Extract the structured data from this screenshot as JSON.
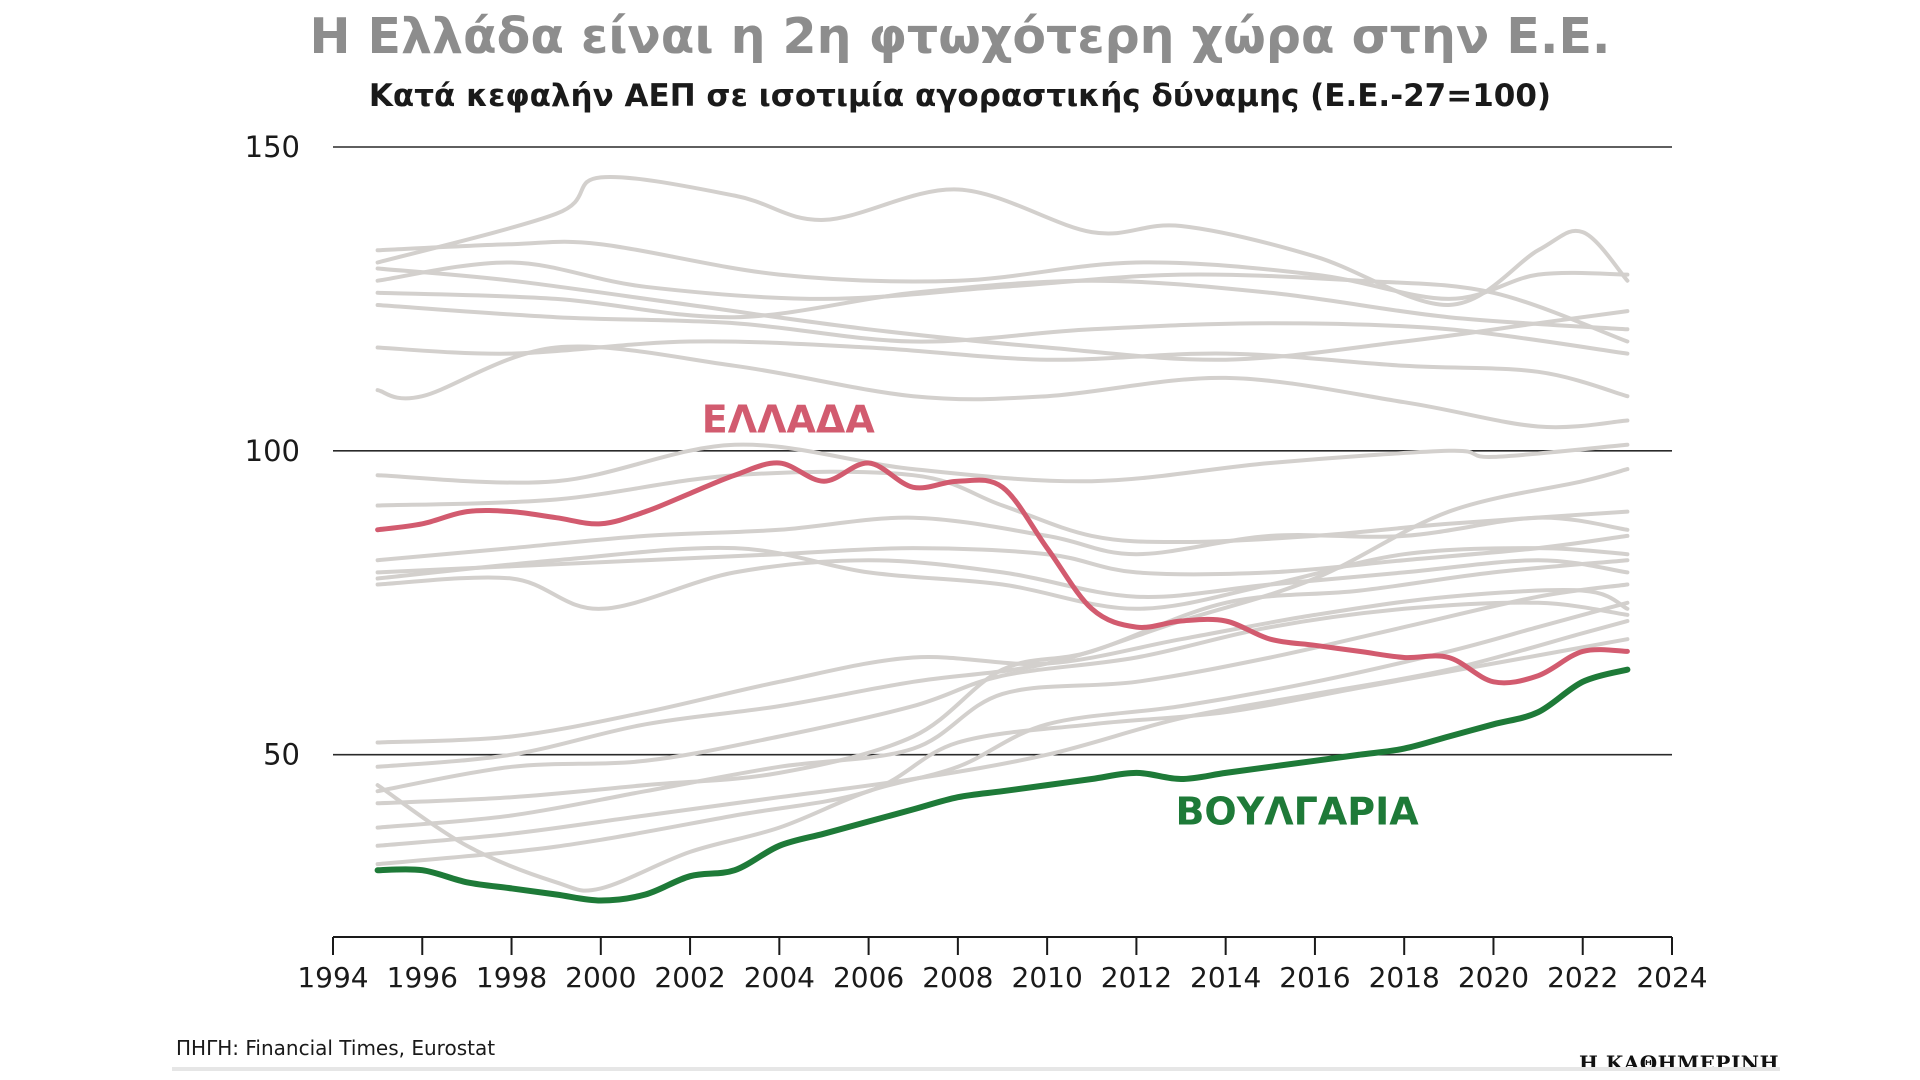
{
  "title": "Η Ελλάδα είναι η 2η φτωχότερη χώρα στην Ε.Ε.",
  "subtitle": "Κατά κεφαλήν ΑΕΠ σε ισοτιμία αγοραστικής δύναμης (Ε.Ε.-27=100)",
  "source": "ΠΗΓΗ: Financial Times, Eurostat",
  "brand": "Η ΚΑΘΗΜΕΡΙΝΗ",
  "colors": {
    "greece": "#d25b6f",
    "bulgaria": "#1e7a38",
    "others": "#d3d0cd",
    "grid": "#2a2a2a",
    "axis_text": "#1a1a1a"
  },
  "chart_data": {
    "type": "line",
    "title": "Η Ελλάδα είναι η 2η φτωχότερη χώρα στην Ε.Ε.",
    "subtitle": "Κατά κεφαλήν ΑΕΠ σε ισοτιμία αγοραστικής δύναμης (Ε.Ε.-27=100)",
    "xlabel": "",
    "ylabel": "",
    "xlim": [
      1994,
      2024
    ],
    "ylim": [
      20,
      150
    ],
    "x_ticks": [
      1994,
      1996,
      1998,
      2000,
      2002,
      2004,
      2006,
      2008,
      2010,
      2012,
      2014,
      2016,
      2018,
      2020,
      2022,
      2024
    ],
    "y_ticks": [
      50,
      100,
      150
    ],
    "grid": "horizontal",
    "highlighted_series": [
      {
        "name": "ΕΛΛΑΔΑ",
        "label": "ΕΛΛΑΔΑ",
        "color": "#d25b6f",
        "x": [
          1995,
          1996,
          1997,
          1998,
          1999,
          2000,
          2001,
          2002,
          2003,
          2004,
          2005,
          2006,
          2007,
          2008,
          2009,
          2010,
          2011,
          2012,
          2013,
          2014,
          2015,
          2016,
          2017,
          2018,
          2019,
          2020,
          2021,
          2022,
          2023
        ],
        "values": [
          87,
          88,
          90,
          90,
          89,
          88,
          90,
          93,
          96,
          98,
          95,
          98,
          94,
          95,
          94,
          84,
          74,
          71,
          72,
          72,
          69,
          68,
          67,
          66,
          66,
          62,
          63,
          67,
          67
        ]
      },
      {
        "name": "ΒΟΥΛΓΑΡΙΑ",
        "label": "ΒΟΥΛΓΑΡΙΑ",
        "color": "#1e7a38",
        "x": [
          1995,
          1996,
          1997,
          1998,
          1999,
          2000,
          2001,
          2002,
          2003,
          2004,
          2005,
          2006,
          2007,
          2008,
          2009,
          2010,
          2011,
          2012,
          2013,
          2014,
          2015,
          2016,
          2017,
          2018,
          2019,
          2020,
          2021,
          2022,
          2023
        ],
        "values": [
          31,
          31,
          29,
          28,
          27,
          26,
          27,
          30,
          31,
          35,
          37,
          39,
          41,
          43,
          44,
          45,
          46,
          47,
          46,
          47,
          48,
          49,
          50,
          51,
          53,
          55,
          57,
          62,
          64
        ]
      }
    ],
    "series": [
      {
        "name": "other-01",
        "x": [
          1995,
          1999,
          2000,
          2003,
          2005,
          2008,
          2011,
          2013,
          2016,
          2019,
          2021,
          2022,
          2023
        ],
        "values": [
          131,
          139,
          145,
          142,
          138,
          143,
          136,
          137,
          132,
          124,
          133,
          136,
          128
        ]
      },
      {
        "name": "other-02",
        "x": [
          1995,
          1998,
          2000,
          2004,
          2008,
          2012,
          2016,
          2019,
          2021,
          2023
        ],
        "values": [
          133,
          134,
          134,
          129,
          128,
          131,
          129,
          125,
          129,
          129
        ]
      },
      {
        "name": "other-03",
        "x": [
          1995,
          1998,
          2001,
          2005,
          2009,
          2013,
          2017,
          2020,
          2023
        ],
        "values": [
          128,
          131,
          127,
          125,
          127,
          129,
          128,
          126,
          118
        ]
      },
      {
        "name": "other-04",
        "x": [
          1995,
          1999,
          2003,
          2007,
          2011,
          2015,
          2019,
          2023
        ],
        "values": [
          126,
          125,
          122,
          126,
          128,
          126,
          122,
          120
        ]
      },
      {
        "name": "other-05",
        "x": [
          1995,
          1999,
          2003,
          2007,
          2011,
          2015,
          2019,
          2023
        ],
        "values": [
          124,
          122,
          121,
          118,
          120,
          121,
          120,
          116
        ]
      },
      {
        "name": "other-06",
        "x": [
          1995,
          1998,
          2002,
          2006,
          2010,
          2014,
          2018,
          2021,
          2023
        ],
        "values": [
          130,
          128,
          124,
          120,
          117,
          115,
          118,
          121,
          123
        ]
      },
      {
        "name": "other-07",
        "x": [
          1995,
          1998,
          2002,
          2006,
          2010,
          2014,
          2018,
          2021,
          2023
        ],
        "values": [
          117,
          116,
          118,
          117,
          115,
          116,
          114,
          113,
          109
        ]
      },
      {
        "name": "other-08",
        "x": [
          1995,
          1996,
          1999,
          2003,
          2007,
          2010,
          2014,
          2018,
          2021,
          2023
        ],
        "values": [
          110,
          109,
          117,
          114,
          109,
          109,
          112,
          108,
          104,
          105
        ]
      },
      {
        "name": "other-09",
        "x": [
          1995,
          1999,
          2003,
          2007,
          2009,
          2011,
          2013,
          2016,
          2019,
          2023
        ],
        "values": [
          91,
          92,
          96,
          96,
          91,
          86,
          85,
          86,
          88,
          90
        ]
      },
      {
        "name": "other-10",
        "x": [
          1995,
          1998,
          2001,
          2004,
          2007,
          2010,
          2012,
          2015,
          2018,
          2021,
          2023
        ],
        "values": [
          82,
          84,
          86,
          87,
          89,
          86,
          83,
          86,
          86,
          89,
          87
        ]
      },
      {
        "name": "other-11",
        "x": [
          1995,
          1998,
          2001,
          2004,
          2007,
          2010,
          2012,
          2015,
          2018,
          2021,
          2023
        ],
        "values": [
          80,
          81,
          82,
          83,
          84,
          83,
          80,
          80,
          82,
          84,
          86
        ]
      },
      {
        "name": "other-12",
        "x": [
          1995,
          1998,
          2000,
          2003,
          2006,
          2009,
          2012,
          2015,
          2018,
          2021,
          2023
        ],
        "values": [
          78,
          79,
          74,
          80,
          82,
          80,
          76,
          78,
          80,
          82,
          80
        ]
      },
      {
        "name": "other-13",
        "x": [
          1995,
          1999,
          2003,
          2007,
          2011,
          2015,
          2019,
          2020,
          2023
        ],
        "values": [
          96,
          95,
          101,
          97,
          95,
          98,
          100,
          99,
          101
        ]
      },
      {
        "name": "other-14",
        "x": [
          1995,
          1999,
          2003,
          2006,
          2009,
          2012,
          2015,
          2018,
          2021,
          2023
        ],
        "values": [
          79,
          82,
          84,
          80,
          78,
          74,
          78,
          83,
          84,
          83
        ]
      },
      {
        "name": "other-15",
        "x": [
          1995,
          1998,
          2001,
          2004,
          2007,
          2010,
          2013,
          2016,
          2019,
          2022,
          2023
        ],
        "values": [
          52,
          53,
          57,
          62,
          66,
          65,
          69,
          73,
          76,
          77,
          74
        ]
      },
      {
        "name": "other-16",
        "x": [
          1995,
          1998,
          2001,
          2004,
          2007,
          2010,
          2013,
          2016,
          2019,
          2022,
          2023
        ],
        "values": [
          48,
          50,
          55,
          58,
          62,
          65,
          72,
          79,
          90,
          95,
          97
        ]
      },
      {
        "name": "other-17",
        "x": [
          1995,
          1998,
          2001,
          2004,
          2007,
          2009,
          2012,
          2015,
          2018,
          2021,
          2023
        ],
        "values": [
          44,
          48,
          49,
          53,
          58,
          63,
          66,
          71,
          74,
          75,
          73
        ]
      },
      {
        "name": "other-18",
        "x": [
          1995,
          1998,
          2001,
          2004,
          2007,
          2009,
          2011,
          2014,
          2017,
          2020,
          2023
        ],
        "values": [
          42,
          43,
          45,
          47,
          53,
          64,
          67,
          75,
          77,
          80,
          82
        ]
      },
      {
        "name": "other-19",
        "x": [
          1995,
          1998,
          2001,
          2004,
          2007,
          2009,
          2012,
          2015,
          2018,
          2021,
          2023
        ],
        "values": [
          38,
          40,
          44,
          48,
          51,
          60,
          62,
          66,
          71,
          76,
          78
        ]
      },
      {
        "name": "other-20",
        "x": [
          1995,
          1998,
          2001,
          2004,
          2007,
          2010,
          2013,
          2016,
          2019,
          2022,
          2023
        ],
        "values": [
          35,
          37,
          40,
          43,
          46,
          50,
          56,
          60,
          64,
          70,
          72
        ]
      },
      {
        "name": "other-21",
        "x": [
          1995,
          1998,
          2000,
          2003,
          2006,
          2008,
          2011,
          2014,
          2017,
          2020,
          2023
        ],
        "values": [
          32,
          34,
          36,
          40,
          44,
          52,
          55,
          57,
          61,
          65,
          69
        ]
      },
      {
        "name": "other-22",
        "x": [
          1995,
          1997,
          1999,
          2000,
          2002,
          2004,
          2006,
          2008,
          2010,
          2013,
          2016,
          2019,
          2021,
          2023
        ],
        "values": [
          45,
          35,
          29,
          28,
          34,
          38,
          44,
          48,
          55,
          58,
          62,
          67,
          71,
          75
        ]
      }
    ]
  }
}
